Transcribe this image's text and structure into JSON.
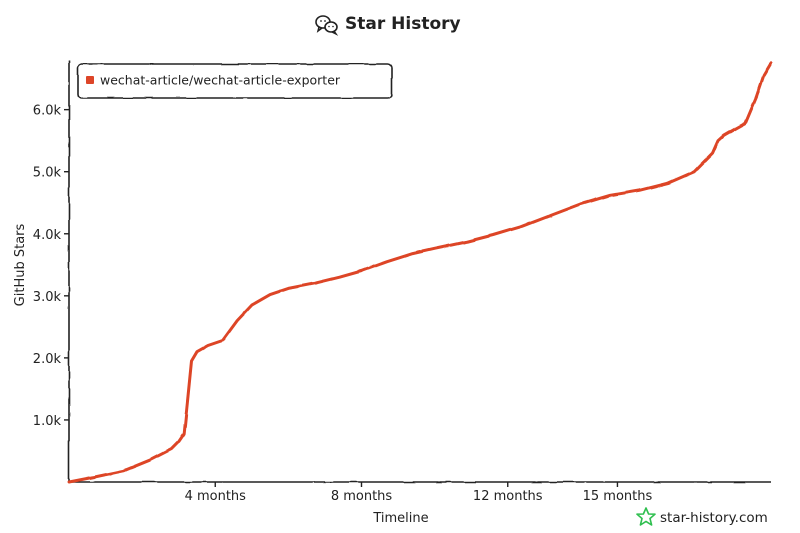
{
  "title": "Star History",
  "title_icon": "wechat-icon",
  "watermark": {
    "text": "star-history.com",
    "icon": "star-logo-icon",
    "color": "#2fbf4f"
  },
  "chart_data": {
    "type": "line",
    "title": "Star History",
    "xlabel": "Timeline",
    "ylabel": "GitHub Stars",
    "x_unit": "months",
    "xlim": [
      0,
      19.2
    ],
    "ylim": [
      0,
      6800
    ],
    "x_ticks": [
      {
        "value": 4,
        "label": "4 months"
      },
      {
        "value": 8,
        "label": "8 months"
      },
      {
        "value": 12,
        "label": "12 months"
      },
      {
        "value": 15,
        "label": "15 months"
      }
    ],
    "y_ticks": [
      {
        "value": 1000,
        "label": "1.0k"
      },
      {
        "value": 2000,
        "label": "2.0k"
      },
      {
        "value": 3000,
        "label": "3.0k"
      },
      {
        "value": 4000,
        "label": "4.0k"
      },
      {
        "value": 5000,
        "label": "5.0k"
      },
      {
        "value": 6000,
        "label": "6.0k"
      }
    ],
    "grid": false,
    "legend_position": "top-left",
    "series": [
      {
        "name": "wechat-article/wechat-article-exporter",
        "color": "#dd4528",
        "x": [
          0,
          0.7,
          1.5,
          2.2,
          2.8,
          3.0,
          3.15,
          3.25,
          3.35,
          3.5,
          3.8,
          4.2,
          4.6,
          5.0,
          5.5,
          6.0,
          6.7,
          7.4,
          8.0,
          8.7,
          9.4,
          10.0,
          10.8,
          11.6,
          12.4,
          13.2,
          14.0,
          14.8,
          15.6,
          16.4,
          17.1,
          17.6,
          17.75,
          17.9,
          18.1,
          18.5,
          18.8,
          19.0,
          19.2
        ],
        "y": [
          0,
          80,
          180,
          350,
          530,
          650,
          780,
          1350,
          1950,
          2100,
          2200,
          2280,
          2600,
          2850,
          3020,
          3120,
          3200,
          3300,
          3400,
          3550,
          3680,
          3760,
          3860,
          3980,
          4120,
          4300,
          4480,
          4620,
          4700,
          4820,
          5000,
          5300,
          5500,
          5580,
          5650,
          5780,
          6200,
          6550,
          6750
        ]
      }
    ]
  }
}
